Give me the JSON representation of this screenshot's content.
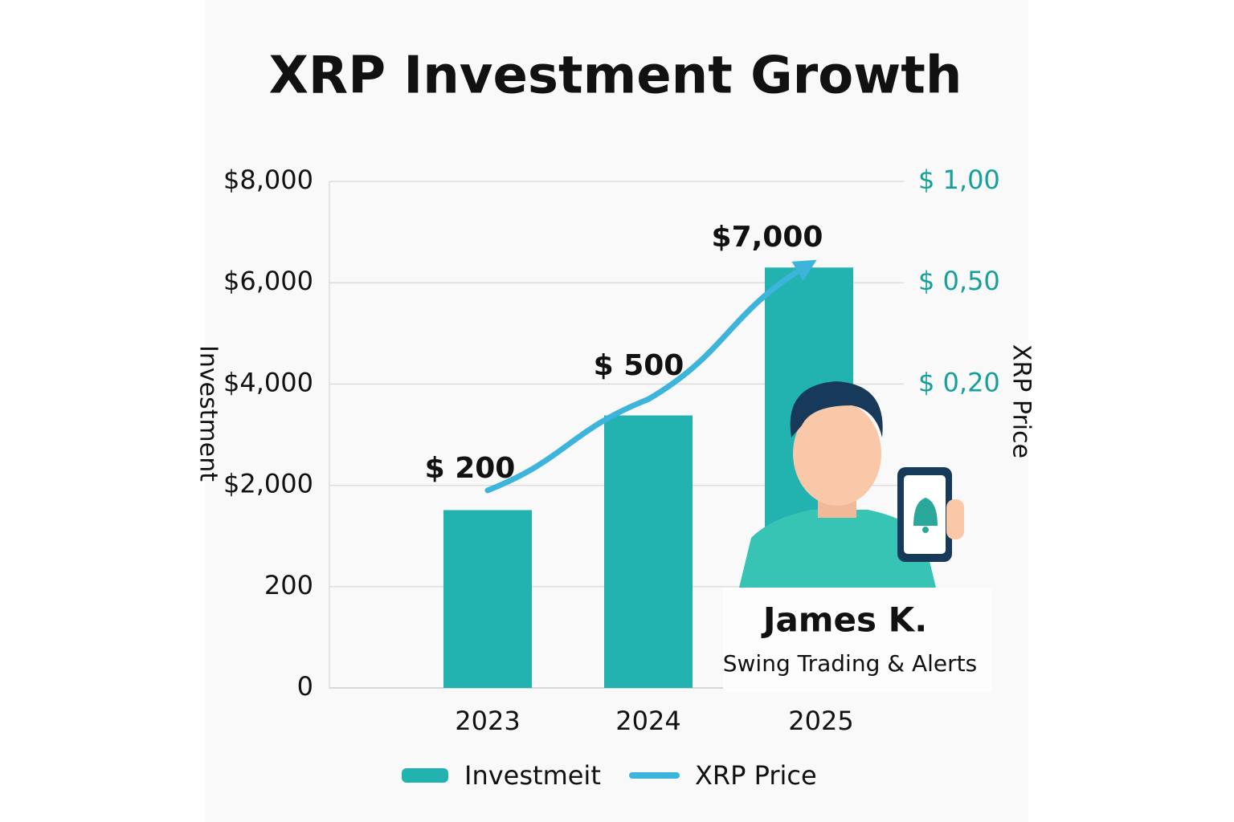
{
  "chart_data": {
    "type": "bar-line",
    "title": "XRP Investment Growth",
    "y_label": "Investment",
    "y2_label": "XRP Price",
    "categories": [
      "2023",
      "2024",
      "2025"
    ],
    "series": [
      {
        "name": "Investmeit",
        "color": "#22b2b0",
        "type": "bar",
        "values": [
          1560,
          3380,
          6300
        ]
      },
      {
        "name": "XRP Price",
        "color": "#3cb4dc",
        "type": "line",
        "axis": "y2",
        "values": [
          0.13,
          0.19,
          0.59
        ]
      }
    ],
    "ylim": [
      0,
      8000
    ],
    "yticks": [
      0,
      200,
      {
        "value": 2000,
        "label": "$2,000"
      },
      {
        "value": 4000,
        "label": "$4,000"
      },
      {
        "value": 6000,
        "label": "$6,000"
      },
      {
        "value": 8000,
        "label": "$8,000"
      }
    ],
    "ytick_labels_note_free": null,
    "y2lim": [
      0,
      1
    ],
    "y2ticks": [
      {
        "value": 0.2,
        "label": "$ 0,20"
      },
      {
        "value": 0.5,
        "label": "$ 0,50"
      },
      {
        "value": 1,
        "label": "$ 1,00"
      }
    ],
    "y2_color": "#16a09c",
    "grid": true,
    "annotations": [
      "$ 200",
      "$ 500",
      "$7,000"
    ],
    "profile": {
      "name": "James K.",
      "tagline": "Swing Trading & Alerts"
    }
  }
}
